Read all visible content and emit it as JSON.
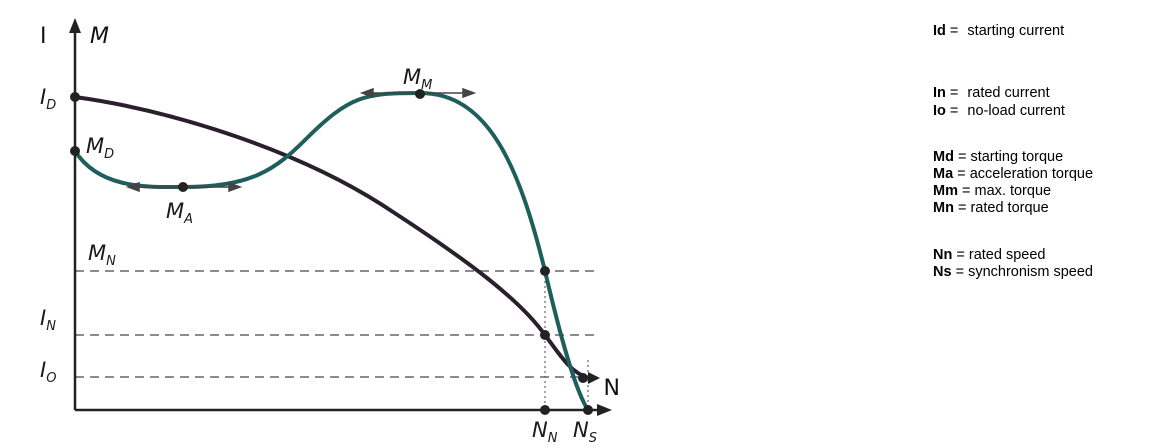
{
  "diagram": {
    "axes": {
      "y_label_current": "I",
      "y_label_torque": "M",
      "x_label": "N"
    },
    "points": {
      "id": {
        "main": "I",
        "sub": "D"
      },
      "md": {
        "main": "M",
        "sub": "D"
      },
      "ma": {
        "main": "M",
        "sub": "A"
      },
      "mm": {
        "main": "M",
        "sub": "M"
      },
      "mn": {
        "main": "M",
        "sub": "N"
      },
      "in": {
        "main": "I",
        "sub": "N"
      },
      "io": {
        "main": "I",
        "sub": "O"
      },
      "nn": {
        "main": "N",
        "sub": "N"
      },
      "ns": {
        "main": "N",
        "sub": "S"
      }
    },
    "colors": {
      "torque_curve": "#1f5f5b",
      "current_curve": "#2a1f2c",
      "axes": "#222222",
      "guides": "#666666"
    }
  },
  "legend": [
    {
      "key": "Id",
      "eq": " = ",
      "desc": "starting current"
    },
    {
      "key": "In",
      "eq": " = ",
      "desc": "rated current"
    },
    {
      "key": "Io",
      "eq": " = ",
      "desc": "no-load current"
    },
    {
      "key": "Md",
      "eq": " = ",
      "desc": "starting torque"
    },
    {
      "key": "Ma",
      "eq": " = ",
      "desc": "acceleration torque"
    },
    {
      "key": "Mm",
      "eq": " = ",
      "desc": "max. torque"
    },
    {
      "key": "Mn",
      "eq": " = ",
      "desc": "rated torque"
    },
    {
      "key": "Nn",
      "eq": " = ",
      "desc": "rated speed"
    },
    {
      "key": "Ns",
      "eq": " = ",
      "desc": "synchronism speed"
    }
  ]
}
